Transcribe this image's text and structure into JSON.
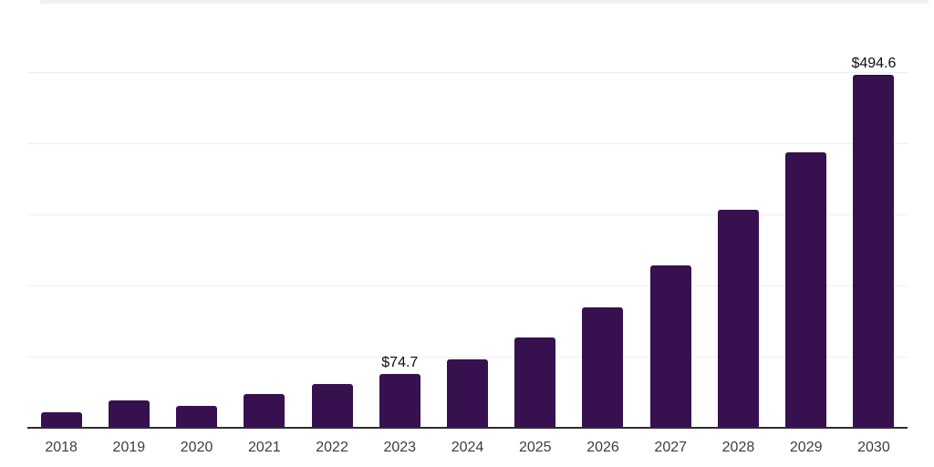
{
  "chart_data": {
    "type": "bar",
    "title": "",
    "xlabel": "",
    "ylabel": "",
    "categories": [
      "2018",
      "2019",
      "2020",
      "2021",
      "2022",
      "2023",
      "2024",
      "2025",
      "2026",
      "2027",
      "2028",
      "2029",
      "2030"
    ],
    "values": [
      20.5,
      37.2,
      29.5,
      46.2,
      60.3,
      74.7,
      95.0,
      125.6,
      168.0,
      226.9,
      305.1,
      385.9,
      494.6
    ],
    "labels": [
      "",
      "",
      "",
      "",
      "",
      "$74.7",
      "",
      "",
      "",
      "",
      "",
      "",
      "$494.6"
    ],
    "ylim": [
      0,
      600
    ],
    "gridline_step": 100,
    "grid": true,
    "legend": false,
    "y_axis_tick_labels_visible": false,
    "bar_color": "#371050",
    "gridline_color": "#efeff1",
    "axis_line_color": "#2e2e2e",
    "x_tick_color": "#3d3d3d",
    "data_label_color": "#0d0d0d",
    "currency_prefix": "$"
  }
}
